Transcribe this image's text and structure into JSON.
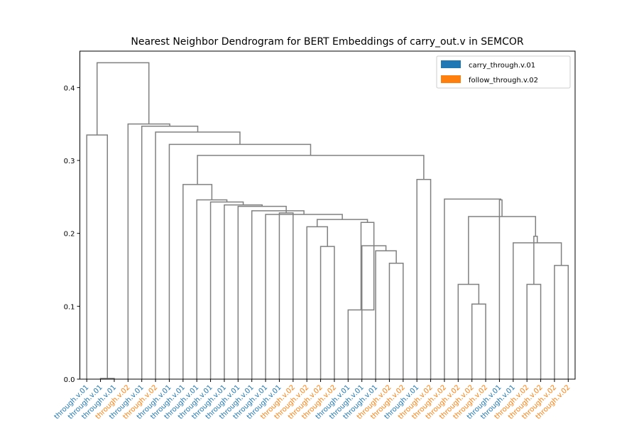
{
  "chart_data": {
    "type": "dendrogram",
    "title": "Nearest Neighbor Dendrogram for BERT Embeddings of carry_out.v in SEMCOR",
    "ylim": [
      0,
      0.45
    ],
    "yticks": [
      "0.0",
      "0.1",
      "0.2",
      "0.3",
      "0.4"
    ],
    "ytick_values": [
      0,
      0.1,
      0.2,
      0.3,
      0.4
    ],
    "legend": {
      "placement": "top-right",
      "entries": [
        {
          "label": "carry_through.v.01",
          "color": "#1f77b4"
        },
        {
          "label": "follow_through.v.02",
          "color": "#ff7f0e"
        }
      ]
    },
    "leaf_colors": {
      "carry_through.v.01": "#1f77b4",
      "follow_through.v.02": "#ff7f0e"
    },
    "leaves": [
      {
        "label": "through.v.01",
        "sense": "carry_through.v.01"
      },
      {
        "label": "through.v.01",
        "sense": "carry_through.v.01"
      },
      {
        "label": "through.v.01",
        "sense": "carry_through.v.01"
      },
      {
        "label": "through.v.02",
        "sense": "follow_through.v.02"
      },
      {
        "label": "through.v.01",
        "sense": "carry_through.v.01"
      },
      {
        "label": "through.v.02",
        "sense": "follow_through.v.02"
      },
      {
        "label": "through.v.01",
        "sense": "carry_through.v.01"
      },
      {
        "label": "through.v.01",
        "sense": "carry_through.v.01"
      },
      {
        "label": "through.v.01",
        "sense": "carry_through.v.01"
      },
      {
        "label": "through.v.01",
        "sense": "carry_through.v.01"
      },
      {
        "label": "through.v.01",
        "sense": "carry_through.v.01"
      },
      {
        "label": "through.v.01",
        "sense": "carry_through.v.01"
      },
      {
        "label": "through.v.01",
        "sense": "carry_through.v.01"
      },
      {
        "label": "through.v.01",
        "sense": "carry_through.v.01"
      },
      {
        "label": "through.v.01",
        "sense": "carry_through.v.01"
      },
      {
        "label": "through.v.02",
        "sense": "follow_through.v.02"
      },
      {
        "label": "through.v.02",
        "sense": "follow_through.v.02"
      },
      {
        "label": "through.v.02",
        "sense": "follow_through.v.02"
      },
      {
        "label": "through.v.02",
        "sense": "follow_through.v.02"
      },
      {
        "label": "through.v.01",
        "sense": "carry_through.v.01"
      },
      {
        "label": "through.v.01",
        "sense": "carry_through.v.01"
      },
      {
        "label": "through.v.01",
        "sense": "carry_through.v.01"
      },
      {
        "label": "through.v.02",
        "sense": "follow_through.v.02"
      },
      {
        "label": "through.v.02",
        "sense": "follow_through.v.02"
      },
      {
        "label": "through.v.01",
        "sense": "carry_through.v.01"
      },
      {
        "label": "through.v.02",
        "sense": "follow_through.v.02"
      },
      {
        "label": "through.v.02",
        "sense": "follow_through.v.02"
      },
      {
        "label": "through.v.02",
        "sense": "follow_through.v.02"
      },
      {
        "label": "through.v.02",
        "sense": "follow_through.v.02"
      },
      {
        "label": "through.v.02",
        "sense": "follow_through.v.02"
      },
      {
        "label": "through.v.01",
        "sense": "carry_through.v.01"
      },
      {
        "label": "through.v.01",
        "sense": "carry_through.v.01"
      },
      {
        "label": "through.v.02",
        "sense": "follow_through.v.02"
      },
      {
        "label": "through.v.02",
        "sense": "follow_through.v.02"
      },
      {
        "label": "through.v.02",
        "sense": "follow_through.v.02"
      },
      {
        "label": "through.v.02",
        "sense": "follow_through.v.02"
      }
    ],
    "merges": [
      [
        1,
        2,
        0.001,
        2
      ],
      [
        14,
        15,
        0.228,
        2
      ],
      [
        22,
        23,
        0.159,
        2
      ],
      [
        21,
        38,
        0.176,
        3
      ],
      [
        20,
        39,
        0.183,
        4
      ],
      [
        19,
        40,
        0.095,
        2
      ],
      [
        41,
        40,
        0.215,
        5
      ],
      [
        17,
        18,
        0.182,
        2
      ],
      [
        16,
        43,
        0.209,
        3
      ],
      [
        44,
        42,
        0.219,
        8
      ],
      [
        45,
        13,
        0.226,
        9
      ],
      [
        46,
        12,
        0.231,
        10
      ],
      [
        37,
        11,
        0.237,
        11
      ],
      [
        48,
        10,
        0.239,
        13
      ],
      [
        49,
        9,
        0.243,
        14
      ],
      [
        50,
        8,
        0.246,
        15
      ],
      [
        51,
        7,
        0.267,
        16
      ],
      [
        32,
        33,
        0.13,
        2
      ],
      [
        34,
        35,
        0.156,
        2
      ],
      [
        31,
        54,
        0.187,
        3
      ],
      [
        55,
        53,
        0.196,
        5
      ],
      [
        28,
        29,
        0.103,
        2
      ],
      [
        27,
        57,
        0.13,
        3
      ],
      [
        56,
        58,
        0.223,
        8
      ],
      [
        30,
        59,
        0.246,
        9
      ],
      [
        26,
        60,
        0.247,
        10
      ],
      [
        25,
        24,
        0.274,
        11
      ],
      [
        52,
        62,
        0.307,
        27
      ],
      [
        6,
        63,
        0.322,
        28
      ],
      [
        5,
        64,
        0.339,
        29
      ],
      [
        4,
        65,
        0.347,
        30
      ],
      [
        3,
        66,
        0.35,
        31
      ],
      [
        0,
        36,
        0.335,
        3
      ],
      [
        67,
        68,
        0.434,
        36
      ]
    ]
  }
}
